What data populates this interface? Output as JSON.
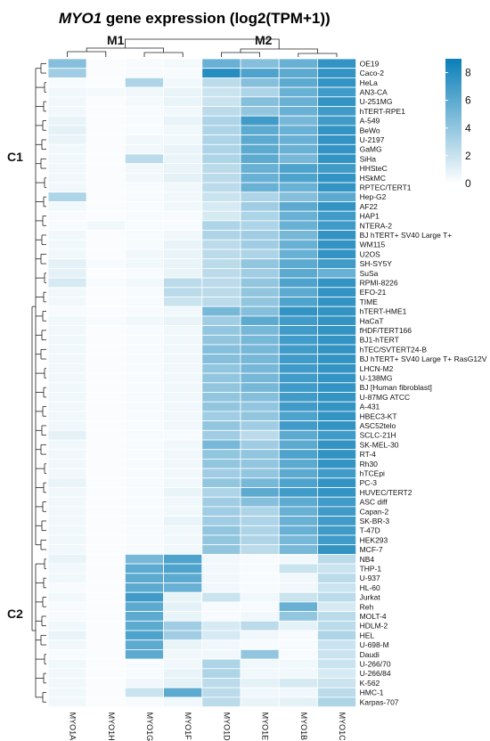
{
  "chart_data": {
    "type": "heatmap",
    "title_italic": "MYO1",
    "title_rest": " gene expression (log2(TPM+1))",
    "columns": [
      "MYO1A",
      "MYO1H",
      "MYO1G",
      "MYO1F",
      "MYO1D",
      "MYO1E",
      "MYO1B",
      "MYO1C"
    ],
    "column_clusters": [
      "M1",
      "M2"
    ],
    "row_clusters": [
      "C1",
      "C2"
    ],
    "rows": [
      "OE19",
      "Caco-2",
      "HeLa",
      "AN3-CA",
      "U-251MG",
      "hTERT-RPE1",
      "A-549",
      "BeWo",
      "U-2197",
      "GaMG",
      "SiHa",
      "HHSteC",
      "HSkMC",
      "RPTEC/TERT1",
      "Hep-G2",
      "AF22",
      "HAP1",
      "NTERA-2",
      "BJ hTERT+ SV40 Large T+",
      "WM115",
      "U2OS",
      "SH-SY5Y",
      "SuSa",
      "RPMI-8226",
      "EFO-21",
      "TIME",
      "hTERT-HME1",
      "HaCaT",
      "fHDF/TERT166",
      "BJ1-hTERT",
      "hTEC/SVTERT24-B",
      "BJ hTERT+ SV40 Large T+ RasG12V",
      "LHCN-M2",
      "U-138MG",
      "BJ [Human fibroblast]",
      "U-87MG ATCC",
      "A-431",
      "HBEC3-KT",
      "ASC52telo",
      "SCLC-21H",
      "SK-MEL-30",
      "RT-4",
      "Rh30",
      "hTCEpi",
      "PC-3",
      "HUVEC/TERT2",
      "ASC diff",
      "Capan-2",
      "SK-BR-3",
      "T-47D",
      "HEK293",
      "MCF-7",
      "NB4",
      "THP-1",
      "U-937",
      "HL-60",
      "Jurkat",
      "Reh",
      "MOLT-4",
      "HDLM-2",
      "HEL",
      "U-698-M",
      "Daudi",
      "U-266/70",
      "U-266/84",
      "K-562",
      "HMC-1",
      "Karpas-707"
    ],
    "values": [
      [
        4.5,
        0.2,
        0.3,
        0.4,
        5.5,
        4.5,
        5.5,
        7.5
      ],
      [
        3.5,
        0.2,
        0.3,
        0.3,
        8.0,
        6.5,
        6.0,
        7.5
      ],
      [
        0.3,
        0.2,
        3.0,
        0.5,
        2.5,
        4.5,
        6.0,
        7.5
      ],
      [
        0.5,
        0.4,
        0.5,
        0.8,
        2.0,
        3.0,
        5.5,
        7.0
      ],
      [
        0.5,
        0.2,
        0.4,
        0.8,
        2.0,
        4.5,
        5.5,
        7.5
      ],
      [
        0.5,
        0.2,
        0.3,
        0.5,
        2.5,
        4.0,
        5.5,
        7.0
      ],
      [
        0.8,
        0.2,
        0.3,
        0.8,
        3.0,
        7.0,
        5.0,
        7.0
      ],
      [
        1.0,
        0.2,
        0.3,
        0.5,
        3.0,
        6.0,
        5.5,
        7.5
      ],
      [
        0.8,
        0.2,
        0.5,
        0.5,
        3.0,
        6.0,
        5.5,
        7.5
      ],
      [
        0.5,
        0.2,
        0.5,
        0.8,
        3.0,
        6.0,
        5.5,
        7.5
      ],
      [
        0.5,
        0.2,
        2.5,
        0.8,
        3.0,
        6.0,
        5.0,
        7.5
      ],
      [
        0.5,
        0.2,
        0.5,
        0.8,
        2.5,
        5.5,
        6.5,
        7.0
      ],
      [
        0.5,
        0.2,
        0.5,
        1.0,
        2.5,
        5.5,
        6.5,
        7.5
      ],
      [
        0.5,
        0.2,
        0.3,
        0.5,
        2.5,
        5.5,
        5.5,
        7.5
      ],
      [
        3.0,
        0.2,
        0.3,
        0.5,
        2.0,
        3.0,
        4.5,
        6.0
      ],
      [
        0.5,
        0.2,
        0.3,
        0.5,
        1.5,
        3.5,
        6.0,
        7.5
      ],
      [
        0.3,
        0.2,
        0.3,
        0.3,
        1.5,
        3.0,
        5.5,
        7.0
      ],
      [
        0.3,
        0.5,
        0.3,
        0.3,
        3.0,
        3.0,
        5.5,
        7.0
      ],
      [
        0.5,
        0.2,
        0.3,
        0.5,
        3.0,
        3.5,
        5.0,
        7.5
      ],
      [
        0.5,
        0.2,
        0.3,
        0.8,
        2.5,
        3.5,
        5.5,
        7.5
      ],
      [
        0.5,
        0.2,
        0.5,
        0.8,
        2.5,
        3.0,
        5.5,
        7.5
      ],
      [
        1.0,
        0.3,
        0.5,
        0.8,
        2.5,
        4.0,
        6.0,
        7.0
      ],
      [
        1.0,
        0.2,
        0.3,
        0.8,
        2.5,
        3.5,
        6.0,
        5.5
      ],
      [
        1.5,
        0.3,
        0.5,
        2.5,
        2.5,
        4.0,
        6.5,
        7.5
      ],
      [
        0.5,
        0.2,
        0.3,
        2.5,
        2.5,
        4.0,
        6.0,
        7.5
      ],
      [
        0.5,
        0.2,
        0.3,
        2.0,
        2.5,
        4.0,
        6.5,
        7.5
      ],
      [
        0.3,
        0.2,
        0.3,
        0.5,
        5.0,
        4.5,
        7.5,
        7.5
      ],
      [
        0.5,
        0.3,
        0.5,
        0.8,
        3.5,
        6.0,
        7.0,
        7.5
      ],
      [
        0.5,
        0.2,
        0.3,
        0.5,
        4.0,
        5.0,
        7.0,
        7.5
      ],
      [
        0.5,
        0.2,
        0.3,
        0.5,
        4.0,
        5.0,
        7.0,
        7.5
      ],
      [
        0.5,
        0.2,
        0.3,
        0.5,
        4.5,
        5.0,
        7.0,
        7.5
      ],
      [
        0.5,
        0.2,
        0.3,
        0.5,
        4.5,
        5.0,
        7.0,
        7.5
      ],
      [
        0.5,
        0.2,
        0.3,
        0.5,
        4.0,
        5.0,
        7.0,
        7.5
      ],
      [
        0.5,
        0.2,
        0.3,
        0.5,
        4.0,
        5.0,
        7.0,
        7.5
      ],
      [
        0.5,
        0.2,
        0.3,
        0.5,
        4.0,
        5.0,
        7.0,
        7.5
      ],
      [
        0.5,
        0.2,
        0.3,
        0.5,
        4.0,
        4.5,
        7.0,
        7.5
      ],
      [
        0.5,
        0.2,
        0.3,
        0.5,
        4.0,
        4.0,
        7.0,
        7.5
      ],
      [
        0.5,
        0.2,
        0.3,
        0.5,
        3.5,
        4.0,
        6.5,
        7.5
      ],
      [
        0.5,
        0.2,
        0.3,
        0.5,
        4.0,
        3.5,
        7.0,
        7.5
      ],
      [
        1.0,
        0.2,
        0.3,
        0.3,
        3.5,
        2.5,
        6.0,
        7.0
      ],
      [
        0.5,
        0.2,
        0.3,
        0.5,
        5.0,
        3.5,
        6.0,
        7.5
      ],
      [
        0.5,
        0.2,
        0.3,
        0.5,
        4.0,
        4.0,
        6.5,
        7.5
      ],
      [
        0.5,
        0.2,
        0.3,
        0.5,
        4.0,
        4.0,
        6.0,
        7.5
      ],
      [
        0.5,
        0.2,
        0.3,
        0.5,
        3.5,
        4.0,
        6.0,
        7.0
      ],
      [
        0.8,
        0.2,
        0.3,
        0.5,
        4.0,
        5.0,
        6.5,
        7.5
      ],
      [
        0.5,
        0.2,
        0.3,
        0.8,
        3.0,
        6.0,
        7.0,
        7.5
      ],
      [
        0.5,
        0.2,
        0.3,
        0.5,
        3.5,
        4.5,
        6.0,
        7.0
      ],
      [
        0.5,
        0.2,
        0.3,
        0.5,
        3.5,
        3.0,
        5.5,
        7.0
      ],
      [
        0.5,
        0.2,
        0.3,
        0.8,
        3.5,
        3.0,
        5.5,
        7.0
      ],
      [
        0.5,
        0.2,
        0.3,
        0.5,
        4.0,
        3.0,
        5.5,
        7.0
      ],
      [
        0.5,
        0.2,
        0.3,
        0.5,
        4.0,
        3.0,
        5.0,
        7.0
      ],
      [
        0.5,
        0.2,
        0.3,
        0.5,
        4.0,
        2.5,
        5.0,
        7.5
      ],
      [
        0.8,
        0.2,
        5.0,
        6.5,
        0.5,
        0.3,
        0.5,
        2.5
      ],
      [
        0.5,
        0.2,
        6.0,
        6.5,
        0.5,
        0.3,
        2.0,
        2.0
      ],
      [
        0.5,
        0.2,
        6.0,
        6.0,
        0.5,
        0.3,
        0.5,
        2.5
      ],
      [
        0.3,
        0.2,
        6.0,
        5.5,
        0.5,
        0.3,
        0.5,
        2.0
      ],
      [
        0.5,
        0.2,
        7.0,
        0.8,
        2.0,
        0.5,
        2.0,
        2.5
      ],
      [
        0.3,
        0.2,
        6.0,
        1.0,
        0.3,
        0.3,
        5.5,
        1.5
      ],
      [
        0.3,
        0.2,
        6.0,
        0.8,
        0.3,
        0.5,
        4.0,
        2.5
      ],
      [
        0.5,
        0.2,
        6.0,
        3.5,
        1.5,
        2.5,
        1.0,
        2.5
      ],
      [
        0.8,
        0.2,
        6.5,
        3.5,
        1.5,
        0.5,
        0.3,
        3.0
      ],
      [
        0.5,
        0.2,
        6.0,
        0.8,
        0.5,
        0.3,
        0.3,
        2.0
      ],
      [
        0.3,
        0.2,
        6.0,
        0.5,
        0.5,
        4.0,
        0.3,
        2.0
      ],
      [
        0.5,
        0.2,
        0.3,
        0.5,
        3.0,
        0.5,
        0.5,
        2.0
      ],
      [
        0.5,
        0.2,
        0.3,
        0.8,
        3.0,
        0.5,
        0.5,
        1.5
      ],
      [
        0.5,
        0.2,
        0.5,
        1.0,
        2.5,
        1.0,
        1.5,
        2.0
      ],
      [
        0.5,
        0.2,
        2.0,
        6.0,
        2.5,
        0.5,
        0.5,
        2.5
      ],
      [
        0.5,
        0.2,
        0.3,
        0.5,
        2.5,
        0.8,
        1.0,
        3.0
      ]
    ],
    "colorbar": {
      "min": 0,
      "max": 9,
      "ticks": [
        "8",
        "6",
        "4",
        "2",
        "0"
      ],
      "tick_values": [
        8,
        6,
        4,
        2,
        0
      ],
      "colors": [
        "#ffffff",
        "#0a7fb8"
      ]
    }
  }
}
